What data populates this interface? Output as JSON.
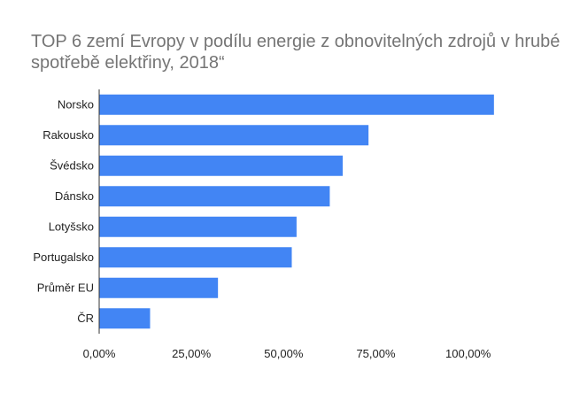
{
  "chart_data": {
    "type": "bar",
    "orientation": "horizontal",
    "title": "TOP 6 zemí Evropy v podílu energie z obnovitelných zdrojů v hrubé spotřebě elektřiny, 2018“",
    "categories": [
      "Norsko",
      "Rakousko",
      "Švédsko",
      "Dánsko",
      "Lotyšsko",
      "Portugalsko",
      "Průměr EU",
      "ČR"
    ],
    "values": [
      107.0,
      73.0,
      66.0,
      62.5,
      53.5,
      52.2,
      32.2,
      13.8
    ],
    "value_unit": "%",
    "xlim": [
      0,
      120
    ],
    "x_ticks": [
      0,
      25,
      50,
      75,
      100
    ],
    "x_tick_labels": [
      "0,00%",
      "25,00%",
      "50,00%",
      "75,00%",
      "100,00%"
    ],
    "grid": false,
    "bar_color": "#4285F4",
    "axis_color": "#333333"
  }
}
